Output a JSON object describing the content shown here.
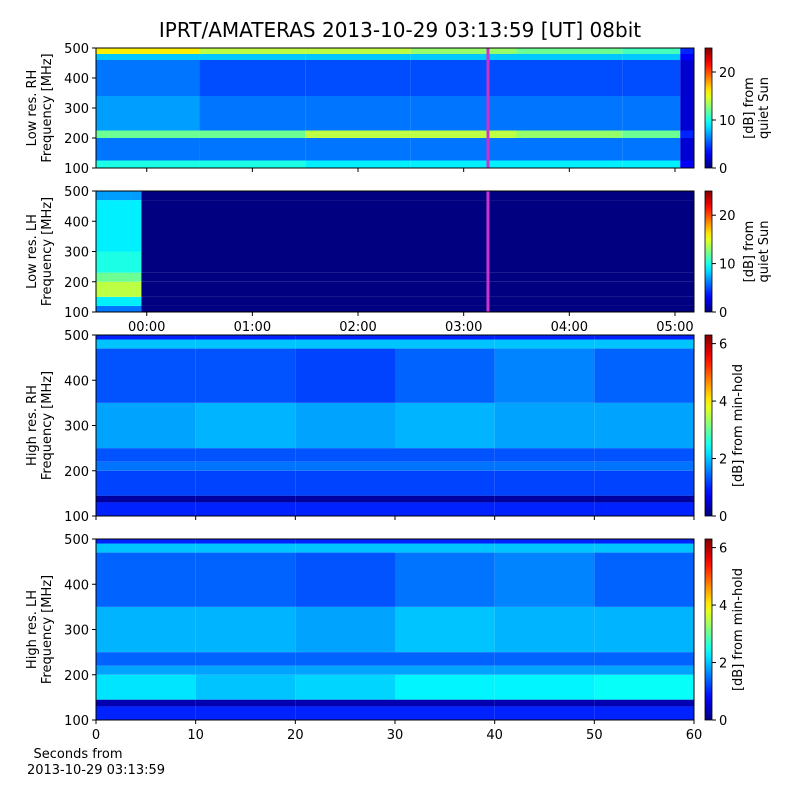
{
  "title": "IPRT/AMATERAS 2013-10-29 03:13:59 [UT]   08bit",
  "chart_data": [
    {
      "type": "heatmap",
      "colormap": "jet",
      "ylabel": [
        "Low res. RH",
        "Frequency [MHz]"
      ],
      "x": [
        -0.48,
        0.5,
        1.5,
        2.5,
        3.5,
        4.5,
        5.05,
        5.18
      ],
      "y": [
        100,
        125,
        200,
        225,
        340,
        460,
        480,
        500
      ],
      "z": [
        [
          10,
          10,
          9,
          9,
          9,
          9,
          3
        ],
        [
          6,
          6,
          6,
          6,
          6,
          6,
          2
        ],
        [
          12,
          12,
          14,
          14,
          13,
          12,
          4
        ],
        [
          7,
          6,
          6,
          6,
          6,
          6,
          2
        ],
        [
          6,
          5,
          5,
          5,
          5,
          5,
          2
        ],
        [
          8,
          8,
          8,
          8,
          8,
          8,
          3
        ],
        [
          16,
          14,
          14,
          13,
          12,
          11,
          4
        ]
      ],
      "xlim": [
        -0.48,
        5.18
      ],
      "xticks": [
        0,
        1,
        2,
        3,
        4,
        5
      ],
      "show_xticklabels": false,
      "ylim": [
        100,
        500
      ],
      "yticks": [
        100,
        200,
        300,
        400,
        500
      ],
      "clim": [
        0,
        25
      ],
      "cticks": [
        0,
        10,
        20
      ],
      "clabel": [
        "[dB] from",
        "quiet Sun"
      ],
      "markers": [
        {
          "x": 3.23,
          "color": "#cc33cc"
        }
      ]
    },
    {
      "type": "heatmap",
      "colormap": "jet",
      "ylabel": [
        "Low res. LH",
        "Frequency [MHz]"
      ],
      "x": [
        -0.48,
        -0.05,
        5.18
      ],
      "y": [
        100,
        120,
        150,
        200,
        230,
        300,
        470,
        500
      ],
      "z": [
        [
          6,
          0
        ],
        [
          9,
          0
        ],
        [
          14,
          0
        ],
        [
          12,
          0
        ],
        [
          10,
          0
        ],
        [
          9,
          0
        ],
        [
          7,
          0
        ]
      ],
      "xlim": [
        -0.48,
        5.18
      ],
      "xticks": [
        {
          "value": 0,
          "label": "00:00"
        },
        {
          "value": 1,
          "label": "01:00"
        },
        {
          "value": 2,
          "label": "02:00"
        },
        {
          "value": 3,
          "label": "03:00"
        },
        {
          "value": 4,
          "label": "04:00"
        },
        {
          "value": 5,
          "label": "05:00"
        }
      ],
      "ylim": [
        100,
        500
      ],
      "yticks": [
        100,
        200,
        300,
        400,
        500
      ],
      "clim": [
        0,
        25
      ],
      "cticks": [
        0,
        10,
        20
      ],
      "clabel": [
        "[dB] from",
        "quiet Sun"
      ],
      "markers": [
        {
          "x": 3.23,
          "color": "#cc33cc"
        }
      ]
    },
    {
      "type": "heatmap",
      "colormap": "jet",
      "ylabel": [
        "High res. RH",
        "Frequency [MHz]"
      ],
      "x": [
        0,
        10,
        20,
        30,
        40,
        50,
        60
      ],
      "y": [
        100,
        130,
        145,
        200,
        220,
        250,
        350,
        470,
        490,
        500
      ],
      "z": [
        [
          1,
          1,
          1,
          1,
          1,
          1
        ],
        [
          0.2,
          0.2,
          0.2,
          0.2,
          0.2,
          0.2
        ],
        [
          1.2,
          1.2,
          1.2,
          1.2,
          1.2,
          1.2
        ],
        [
          1.5,
          1.5,
          1.5,
          1.5,
          1.5,
          1.5
        ],
        [
          1.3,
          1.3,
          1.3,
          1.3,
          1.3,
          1.3
        ],
        [
          1.8,
          1.9,
          1.8,
          1.9,
          1.8,
          1.8
        ],
        [
          1.3,
          1.3,
          1.2,
          1.4,
          1.6,
          1.4
        ],
        [
          2,
          2,
          2,
          2,
          2,
          2
        ],
        [
          1,
          1,
          1,
          1,
          1,
          1
        ]
      ],
      "xlim": [
        0,
        60
      ],
      "xticks": [
        0,
        10,
        20,
        30,
        40,
        50,
        60
      ],
      "show_xticklabels": false,
      "ylim": [
        100,
        500
      ],
      "yticks": [
        100,
        200,
        300,
        400,
        500
      ],
      "clim": [
        0,
        6.3
      ],
      "cticks": [
        0,
        2,
        4,
        6
      ],
      "clabel": [
        "[dB] from min-hold"
      ]
    },
    {
      "type": "heatmap",
      "colormap": "jet",
      "ylabel": [
        "High res. LH",
        "Frequency [MHz]"
      ],
      "x": [
        0,
        10,
        20,
        30,
        40,
        50,
        60
      ],
      "y": [
        100,
        130,
        145,
        200,
        220,
        250,
        350,
        470,
        490,
        500
      ],
      "z": [
        [
          1,
          1,
          1,
          1,
          1,
          1
        ],
        [
          0.3,
          0.3,
          0.3,
          0.3,
          0.3,
          0.3
        ],
        [
          2.2,
          2,
          2.1,
          2.3,
          2.3,
          2.4
        ],
        [
          1.8,
          1.8,
          1.8,
          1.8,
          1.8,
          1.8
        ],
        [
          1.4,
          1.4,
          1.4,
          1.4,
          1.4,
          1.4
        ],
        [
          1.9,
          1.9,
          1.8,
          2,
          1.9,
          1.9
        ],
        [
          1.4,
          1.4,
          1.3,
          1.5,
          1.6,
          1.4
        ],
        [
          2,
          2,
          2,
          2,
          2,
          2
        ],
        [
          1,
          1,
          1,
          1,
          1,
          1
        ]
      ],
      "xlim": [
        0,
        60
      ],
      "xticks": [
        0,
        10,
        20,
        30,
        40,
        50,
        60
      ],
      "xlabel": [
        "Seconds from",
        "2013-10-29 03:13:59"
      ],
      "ylim": [
        100,
        500
      ],
      "yticks": [
        100,
        200,
        300,
        400,
        500
      ],
      "clim": [
        0,
        6.3
      ],
      "cticks": [
        0,
        2,
        4,
        6
      ],
      "clabel": [
        "[dB] from min-hold"
      ]
    }
  ]
}
